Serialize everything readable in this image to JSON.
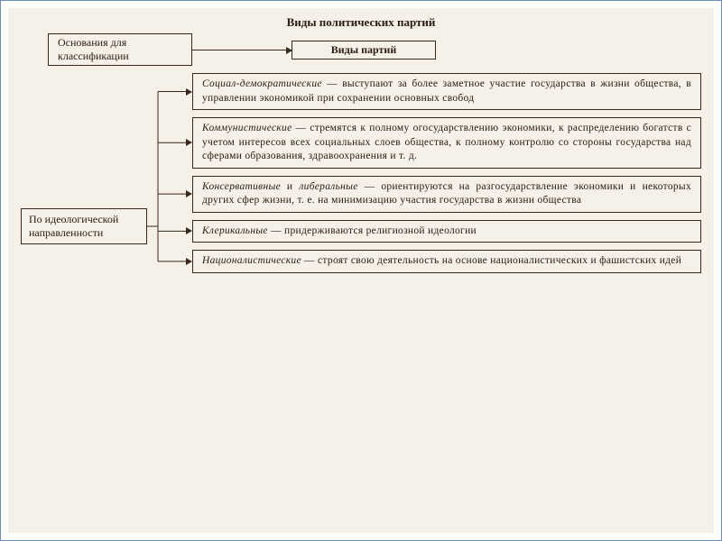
{
  "title": "Виды политических партий",
  "top_left": "Основания для классификации",
  "top_right": "Виды партий",
  "category": "По идеологической направленности",
  "items": [
    {
      "term": "Социал-демократические",
      "desc": " — выступают за более заметное участие государства в жизни общества, в управлении экономикой при сохранении основных свобод"
    },
    {
      "term": "Коммунистические",
      "desc": " — стремятся к полному огосударствлению экономики, к распределению богатств с учетом интересов всех социальных слоев общества, к полному контролю со стороны государства над сферами образования, здравоохранения и т. д."
    },
    {
      "term": "Консервативные",
      "mid": " и ",
      "term2": "либеральные",
      "desc": " — ориентируются на разгосударствление экономики и некоторых других сфер жизни, т. е. на минимизацию участия государства в жизни общества"
    },
    {
      "term": "Клерикальные",
      "desc": " — придерживаются религиозной идеологии"
    },
    {
      "term": "Националистические",
      "desc": " — строят свою деятельность на основе националистических и фашистских идей"
    }
  ],
  "colors": {
    "bg": "#f5f0e8",
    "line": "#3a2818",
    "text": "#2a1a10",
    "frame": "#6a8fb5"
  }
}
